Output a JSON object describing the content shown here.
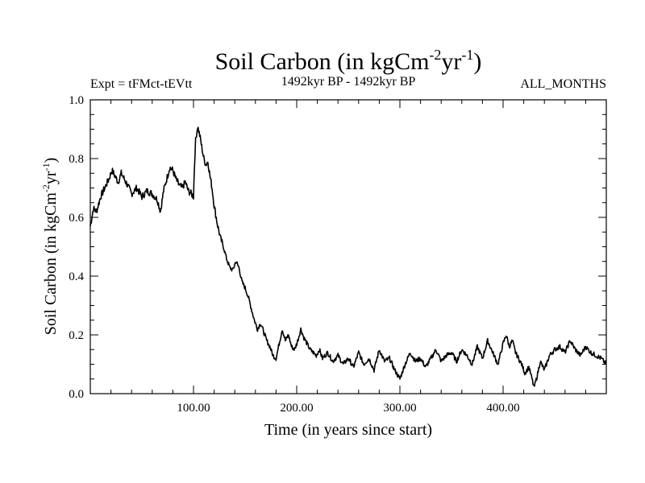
{
  "chart_data": {
    "type": "line",
    "title_main": "Soil Carbon (in kgCm",
    "title_sup1": "-2",
    "title_mid": "yr",
    "title_sup2": "-1",
    "title_end": ")",
    "subtitle_left": "Expt = tFMct-tEVtt",
    "subtitle_center": "1492kyr BP - 1492kyr BP",
    "subtitle_right": "ALL_MONTHS",
    "xlabel": "Time (in years since start)",
    "ylabel_main": "Soil Carbon (in kgCm",
    "ylabel_sup1": "-2",
    "ylabel_mid": "yr",
    "ylabel_sup2": "-1",
    "ylabel_end": ")",
    "xlim": [
      0,
      500
    ],
    "ylim": [
      0,
      1.0
    ],
    "x_ticks": [
      {
        "value": 100,
        "label": "100.00"
      },
      {
        "value": 200,
        "label": "200.00"
      },
      {
        "value": 300,
        "label": "300.00"
      },
      {
        "value": 400,
        "label": "400.00"
      }
    ],
    "y_ticks": [
      {
        "value": 0.0,
        "label": "0.0"
      },
      {
        "value": 0.2,
        "label": "0.2"
      },
      {
        "value": 0.4,
        "label": "0.4"
      },
      {
        "value": 0.6,
        "label": "0.6"
      },
      {
        "value": 0.8,
        "label": "0.8"
      },
      {
        "value": 1.0,
        "label": "1.0"
      }
    ],
    "series": [
      {
        "name": "Soil Carbon",
        "color": "#000000",
        "x": [
          0,
          3,
          6,
          10,
          14,
          18,
          21,
          24,
          27,
          30,
          33,
          36,
          40,
          45,
          50,
          55,
          60,
          65,
          68,
          71,
          74,
          77,
          80,
          83,
          86,
          89,
          92,
          95,
          98,
          100,
          101,
          102,
          104,
          106,
          108,
          110,
          112,
          114,
          116,
          118,
          120,
          123,
          126,
          129,
          132,
          135,
          138,
          141,
          144,
          147,
          150,
          153,
          156,
          159,
          162,
          165,
          168,
          171,
          174,
          177,
          180,
          183,
          186,
          189,
          192,
          195,
          198,
          201,
          204,
          207,
          210,
          213,
          216,
          219,
          222,
          225,
          230,
          235,
          240,
          245,
          250,
          255,
          260,
          265,
          270,
          275,
          280,
          285,
          290,
          295,
          300,
          305,
          310,
          315,
          320,
          325,
          330,
          335,
          340,
          345,
          350,
          355,
          360,
          365,
          370,
          375,
          380,
          385,
          390,
          395,
          400,
          403,
          406,
          409,
          412,
          415,
          418,
          421,
          425,
          428,
          430,
          433,
          436,
          440,
          445,
          450,
          455,
          460,
          465,
          470,
          475,
          480,
          485,
          490,
          495,
          500
        ],
        "y": [
          0.57,
          0.63,
          0.62,
          0.67,
          0.7,
          0.73,
          0.76,
          0.74,
          0.72,
          0.75,
          0.73,
          0.71,
          0.68,
          0.7,
          0.67,
          0.69,
          0.68,
          0.66,
          0.62,
          0.69,
          0.73,
          0.77,
          0.76,
          0.73,
          0.71,
          0.7,
          0.72,
          0.69,
          0.68,
          0.67,
          0.78,
          0.86,
          0.91,
          0.88,
          0.84,
          0.8,
          0.78,
          0.79,
          0.74,
          0.7,
          0.64,
          0.58,
          0.53,
          0.5,
          0.46,
          0.43,
          0.42,
          0.45,
          0.43,
          0.38,
          0.36,
          0.33,
          0.29,
          0.25,
          0.22,
          0.24,
          0.21,
          0.18,
          0.16,
          0.13,
          0.12,
          0.17,
          0.22,
          0.18,
          0.2,
          0.16,
          0.15,
          0.18,
          0.22,
          0.19,
          0.17,
          0.15,
          0.14,
          0.13,
          0.15,
          0.12,
          0.14,
          0.11,
          0.13,
          0.1,
          0.12,
          0.09,
          0.14,
          0.1,
          0.12,
          0.08,
          0.15,
          0.11,
          0.12,
          0.08,
          0.05,
          0.1,
          0.14,
          0.11,
          0.12,
          0.09,
          0.12,
          0.15,
          0.11,
          0.13,
          0.14,
          0.11,
          0.15,
          0.13,
          0.1,
          0.16,
          0.12,
          0.18,
          0.14,
          0.1,
          0.17,
          0.2,
          0.16,
          0.18,
          0.14,
          0.12,
          0.1,
          0.07,
          0.09,
          0.05,
          0.02,
          0.06,
          0.11,
          0.08,
          0.13,
          0.15,
          0.16,
          0.14,
          0.18,
          0.15,
          0.13,
          0.16,
          0.14,
          0.13,
          0.12,
          0.1
        ]
      }
    ]
  }
}
